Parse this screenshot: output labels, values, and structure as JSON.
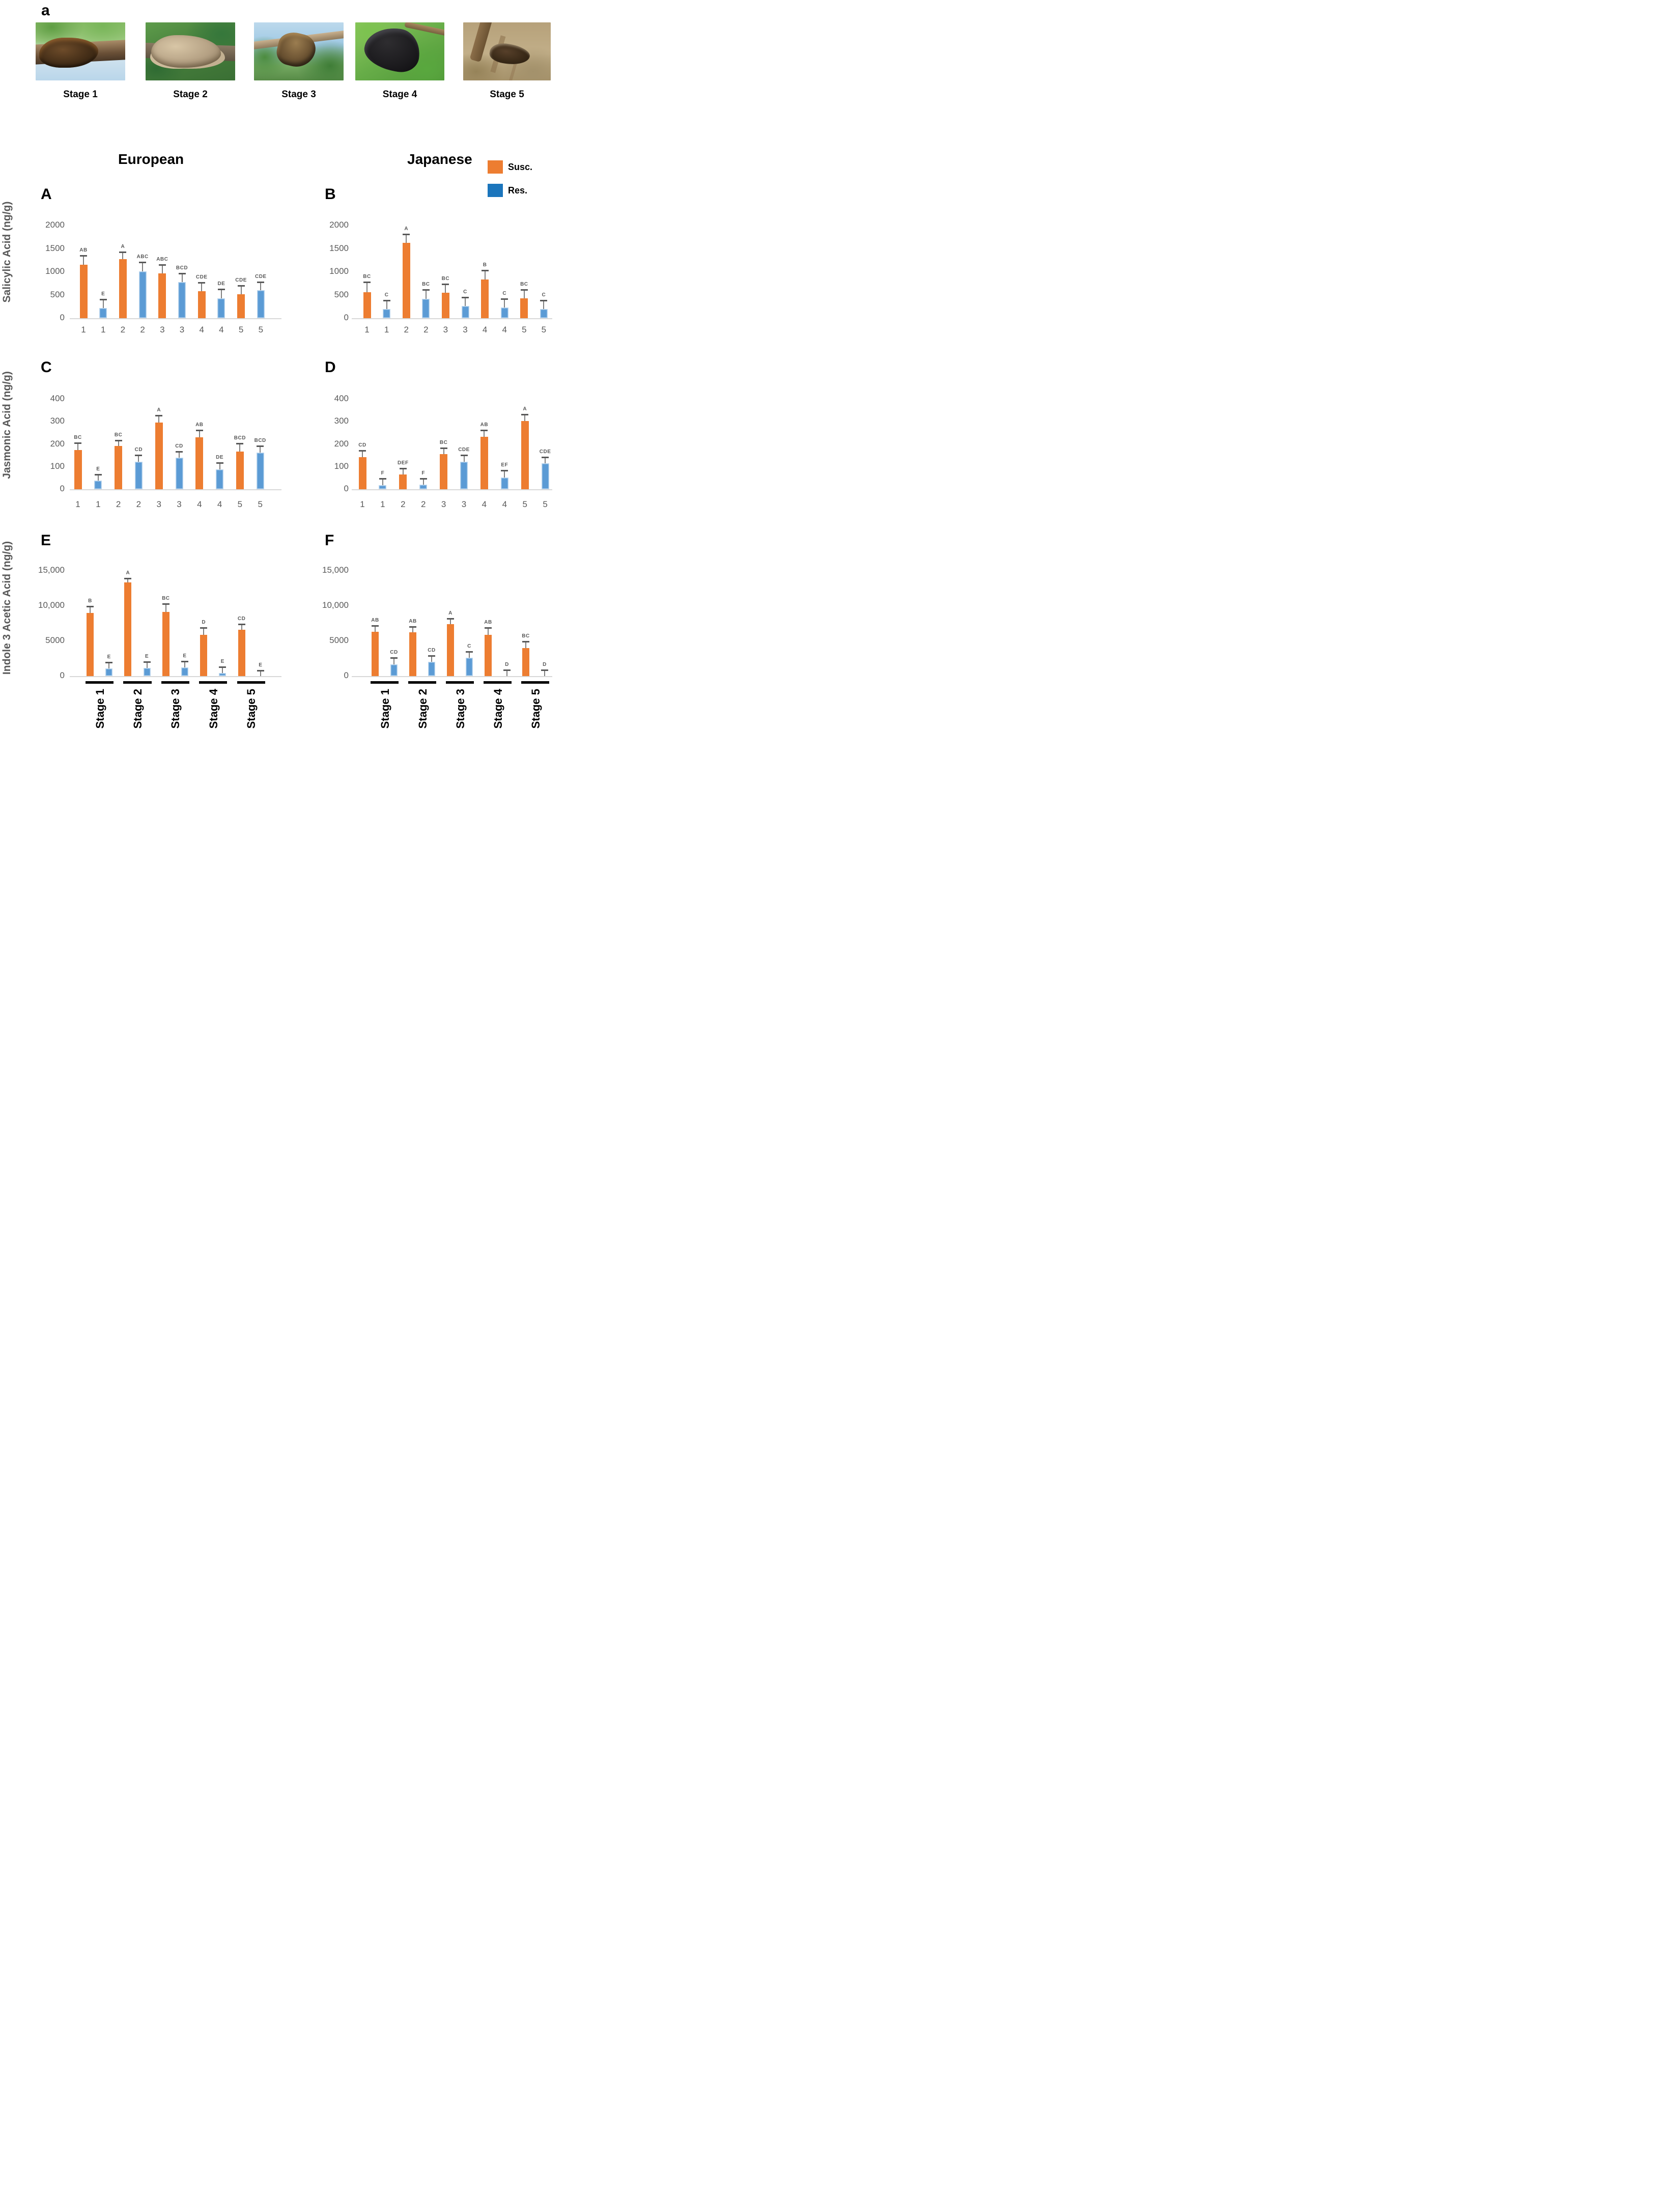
{
  "figure_label": "a",
  "photos": [
    {
      "label": "Stage 1",
      "knot_appearance": "rough dark-brown crusty gall on branch, green foliage and pale sky"
    },
    {
      "label": "Stage 2",
      "knot_appearance": "lumpy pale tan-grey gall across branch, dark green foliage"
    },
    {
      "label": "Stage 3",
      "knot_appearance": "brown knobby gall hanging from thin branch, sky and leaves"
    },
    {
      "label": "Stage 4",
      "knot_appearance": "large black curved knot on branch, bright green leaves"
    },
    {
      "label": "Stage 5",
      "knot_appearance": "dark dried knot on twig, brown dormant field background"
    }
  ],
  "column_titles": {
    "left": "European",
    "right": "Japanese"
  },
  "legend": [
    {
      "label": "Susc.",
      "color": "#ED7D31"
    },
    {
      "label": "Res.",
      "color": "#1B75BC"
    }
  ],
  "series_colors": {
    "susc": "#ED7D31",
    "res": "#5B9BD5",
    "res_border": "#BDD7EE"
  },
  "row_labels": [
    "Salicylic Acid (ng/g)",
    "Jasmonic Acid (ng/g)",
    "Indole 3 Acetic Acid (ng/g)"
  ],
  "chart_data": [
    {
      "panel": "A",
      "type": "bar",
      "column": "European",
      "ylabel": "Salicylic Acid (ng/g)",
      "ylim": [
        0,
        2000
      ],
      "yticks": [
        0,
        500,
        1000,
        1500,
        2000
      ],
      "ytick_labels": [
        "0",
        "500",
        "1000",
        "1500",
        "2000"
      ],
      "x_axis": "numeric",
      "x_tick_labels": [
        "1",
        "1",
        "2",
        "2",
        "3",
        "3",
        "4",
        "4",
        "5",
        "5"
      ],
      "bars": [
        {
          "x": "1",
          "series": "Susc.",
          "value": 1150,
          "err_hi": 1350,
          "letter": "AB"
        },
        {
          "x": "1",
          "series": "Res.",
          "value": 220,
          "err_hi": 410,
          "letter": "E"
        },
        {
          "x": "2",
          "series": "Susc.",
          "value": 1280,
          "err_hi": 1430,
          "letter": "A"
        },
        {
          "x": "2",
          "series": "Res.",
          "value": 1010,
          "err_hi": 1210,
          "letter": "ABC"
        },
        {
          "x": "3",
          "series": "Susc.",
          "value": 970,
          "err_hi": 1150,
          "letter": "ABC"
        },
        {
          "x": "3",
          "series": "Res.",
          "value": 780,
          "err_hi": 970,
          "letter": "BCD"
        },
        {
          "x": "4",
          "series": "Susc.",
          "value": 580,
          "err_hi": 770,
          "letter": "CDE"
        },
        {
          "x": "4",
          "series": "Res.",
          "value": 430,
          "err_hi": 630,
          "letter": "DE"
        },
        {
          "x": "5",
          "series": "Susc.",
          "value": 520,
          "err_hi": 700,
          "letter": "CDE"
        },
        {
          "x": "5",
          "series": "Res.",
          "value": 600,
          "err_hi": 780,
          "letter": "CDE"
        }
      ]
    },
    {
      "panel": "B",
      "type": "bar",
      "column": "Japanese",
      "ylabel": "Salicylic Acid (ng/g)",
      "ylim": [
        0,
        2000
      ],
      "yticks": [
        0,
        500,
        1000,
        1500,
        2000
      ],
      "ytick_labels": [
        "0",
        "500",
        "1000",
        "1500",
        "2000"
      ],
      "x_axis": "numeric",
      "x_tick_labels": [
        "1",
        "1",
        "2",
        "2",
        "3",
        "3",
        "4",
        "4",
        "5",
        "5"
      ],
      "bars": [
        {
          "x": "1",
          "series": "Susc.",
          "value": 560,
          "err_hi": 780,
          "letter": "BC"
        },
        {
          "x": "1",
          "series": "Res.",
          "value": 195,
          "err_hi": 385,
          "letter": "C"
        },
        {
          "x": "2",
          "series": "Susc.",
          "value": 1630,
          "err_hi": 1810,
          "letter": "A"
        },
        {
          "x": "2",
          "series": "Res.",
          "value": 420,
          "err_hi": 610,
          "letter": "BC"
        },
        {
          "x": "3",
          "series": "Susc.",
          "value": 545,
          "err_hi": 740,
          "letter": "BC"
        },
        {
          "x": "3",
          "series": "Res.",
          "value": 260,
          "err_hi": 455,
          "letter": "C"
        },
        {
          "x": "4",
          "series": "Susc.",
          "value": 840,
          "err_hi": 1030,
          "letter": "B"
        },
        {
          "x": "4",
          "series": "Res.",
          "value": 235,
          "err_hi": 420,
          "letter": "C"
        },
        {
          "x": "5",
          "series": "Susc.",
          "value": 430,
          "err_hi": 610,
          "letter": "BC"
        },
        {
          "x": "5",
          "series": "Res.",
          "value": 195,
          "err_hi": 380,
          "letter": "C"
        }
      ]
    },
    {
      "panel": "C",
      "type": "bar",
      "column": "European",
      "ylabel": "Jasmonic Acid (ng/g)",
      "ylim": [
        0,
        400
      ],
      "yticks": [
        0,
        100,
        200,
        300,
        400
      ],
      "ytick_labels": [
        "0",
        "100",
        "200",
        "300",
        "400"
      ],
      "x_axis": "numeric",
      "x_tick_labels": [
        "1",
        "1",
        "2",
        "2",
        "3",
        "3",
        "4",
        "4",
        "5",
        "5"
      ],
      "bars": [
        {
          "x": "1",
          "series": "Susc.",
          "value": 175,
          "err_hi": 205,
          "letter": "BC"
        },
        {
          "x": "1",
          "series": "Res.",
          "value": 38,
          "err_hi": 65,
          "letter": "E"
        },
        {
          "x": "2",
          "series": "Susc.",
          "value": 193,
          "err_hi": 218,
          "letter": "BC"
        },
        {
          "x": "2",
          "series": "Res.",
          "value": 122,
          "err_hi": 152,
          "letter": "CD"
        },
        {
          "x": "3",
          "series": "Susc.",
          "value": 297,
          "err_hi": 328,
          "letter": "A"
        },
        {
          "x": "3",
          "series": "Res.",
          "value": 139,
          "err_hi": 168,
          "letter": "CD"
        },
        {
          "x": "4",
          "series": "Susc.",
          "value": 230,
          "err_hi": 262,
          "letter": "AB"
        },
        {
          "x": "4",
          "series": "Res.",
          "value": 88,
          "err_hi": 118,
          "letter": "DE"
        },
        {
          "x": "5",
          "series": "Susc.",
          "value": 168,
          "err_hi": 203,
          "letter": "BCD"
        },
        {
          "x": "5",
          "series": "Res.",
          "value": 162,
          "err_hi": 192,
          "letter": "BCD"
        }
      ]
    },
    {
      "panel": "D",
      "type": "bar",
      "column": "Japanese",
      "ylabel": "Jasmonic Acid (ng/g)",
      "ylim": [
        0,
        400
      ],
      "yticks": [
        0,
        100,
        200,
        300,
        400
      ],
      "ytick_labels": [
        "0",
        "100",
        "200",
        "300",
        "400"
      ],
      "x_axis": "numeric",
      "x_tick_labels": [
        "1",
        "1",
        "2",
        "2",
        "3",
        "3",
        "4",
        "4",
        "5",
        "5"
      ],
      "bars": [
        {
          "x": "1",
          "series": "Susc.",
          "value": 143,
          "err_hi": 172,
          "letter": "CD"
        },
        {
          "x": "1",
          "series": "Res.",
          "value": 18,
          "err_hi": 47,
          "letter": "F"
        },
        {
          "x": "2",
          "series": "Susc.",
          "value": 65,
          "err_hi": 93,
          "letter": "DEF"
        },
        {
          "x": "2",
          "series": "Res.",
          "value": 20,
          "err_hi": 48,
          "letter": "F"
        },
        {
          "x": "3",
          "series": "Susc.",
          "value": 155,
          "err_hi": 183,
          "letter": "BC"
        },
        {
          "x": "3",
          "series": "Res.",
          "value": 123,
          "err_hi": 152,
          "letter": "CDE"
        },
        {
          "x": "4",
          "series": "Susc.",
          "value": 232,
          "err_hi": 262,
          "letter": "AB"
        },
        {
          "x": "4",
          "series": "Res.",
          "value": 53,
          "err_hi": 83,
          "letter": "EF"
        },
        {
          "x": "5",
          "series": "Susc.",
          "value": 303,
          "err_hi": 333,
          "letter": "A"
        },
        {
          "x": "5",
          "series": "Res.",
          "value": 115,
          "err_hi": 143,
          "letter": "CDE"
        }
      ]
    },
    {
      "panel": "E",
      "type": "bar",
      "column": "European",
      "ylabel": "Indole 3 Acetic Acid (ng/g)",
      "ylim": [
        0,
        15000
      ],
      "yticks": [
        0,
        5000,
        10000,
        15000
      ],
      "ytick_labels": [
        "0",
        "5000",
        "10,000",
        "15,000"
      ],
      "x_axis": "stage",
      "stage_groups": [
        "Stage 1",
        "Stage 2",
        "Stage 3",
        "Stage 4",
        "Stage 5"
      ],
      "bars": [
        {
          "x": "Stage 1",
          "series": "Susc.",
          "value": 9000,
          "err_hi": 9900,
          "letter": "B"
        },
        {
          "x": "Stage 1",
          "series": "Res.",
          "value": 1100,
          "err_hi": 1950,
          "letter": "E"
        },
        {
          "x": "Stage 2",
          "series": "Susc.",
          "value": 13300,
          "err_hi": 13900,
          "letter": "A"
        },
        {
          "x": "Stage 2",
          "series": "Res.",
          "value": 1150,
          "err_hi": 2000,
          "letter": "E"
        },
        {
          "x": "Stage 3",
          "series": "Susc.",
          "value": 9100,
          "err_hi": 10300,
          "letter": "BC"
        },
        {
          "x": "Stage 3",
          "series": "Res.",
          "value": 1200,
          "err_hi": 2100,
          "letter": "E"
        },
        {
          "x": "Stage 4",
          "series": "Susc.",
          "value": 5900,
          "err_hi": 6900,
          "letter": "D"
        },
        {
          "x": "Stage 4",
          "series": "Res.",
          "value": 450,
          "err_hi": 1300,
          "letter": "E"
        },
        {
          "x": "Stage 5",
          "series": "Susc.",
          "value": 6600,
          "err_hi": 7400,
          "letter": "CD"
        },
        {
          "x": "Stage 5",
          "series": "Res.",
          "value": 0,
          "err_hi": 800,
          "letter": "E"
        }
      ]
    },
    {
      "panel": "F",
      "type": "bar",
      "column": "Japanese",
      "ylabel": "Indole 3 Acetic Acid (ng/g)",
      "ylim": [
        0,
        15000
      ],
      "yticks": [
        0,
        5000,
        10000,
        15000
      ],
      "ytick_labels": [
        "0",
        "5000",
        "10,000",
        "15,000"
      ],
      "x_axis": "stage",
      "stage_groups": [
        "Stage 1",
        "Stage 2",
        "Stage 3",
        "Stage 4",
        "Stage 5"
      ],
      "bars": [
        {
          "x": "Stage 1",
          "series": "Susc.",
          "value": 6300,
          "err_hi": 7200,
          "letter": "AB"
        },
        {
          "x": "Stage 1",
          "series": "Res.",
          "value": 1700,
          "err_hi": 2600,
          "letter": "CD"
        },
        {
          "x": "Stage 2",
          "series": "Susc.",
          "value": 6200,
          "err_hi": 7000,
          "letter": "AB"
        },
        {
          "x": "Stage 2",
          "series": "Res.",
          "value": 2000,
          "err_hi": 2900,
          "letter": "CD"
        },
        {
          "x": "Stage 3",
          "series": "Susc.",
          "value": 7400,
          "err_hi": 8200,
          "letter": "A"
        },
        {
          "x": "Stage 3",
          "series": "Res.",
          "value": 2600,
          "err_hi": 3500,
          "letter": "C"
        },
        {
          "x": "Stage 4",
          "series": "Susc.",
          "value": 5900,
          "err_hi": 6900,
          "letter": "AB"
        },
        {
          "x": "Stage 4",
          "series": "Res.",
          "value": 0,
          "err_hi": 900,
          "letter": "D"
        },
        {
          "x": "Stage 5",
          "series": "Susc.",
          "value": 4000,
          "err_hi": 4900,
          "letter": "BC"
        },
        {
          "x": "Stage 5",
          "series": "Res.",
          "value": 0,
          "err_hi": 900,
          "letter": "D"
        }
      ]
    }
  ]
}
